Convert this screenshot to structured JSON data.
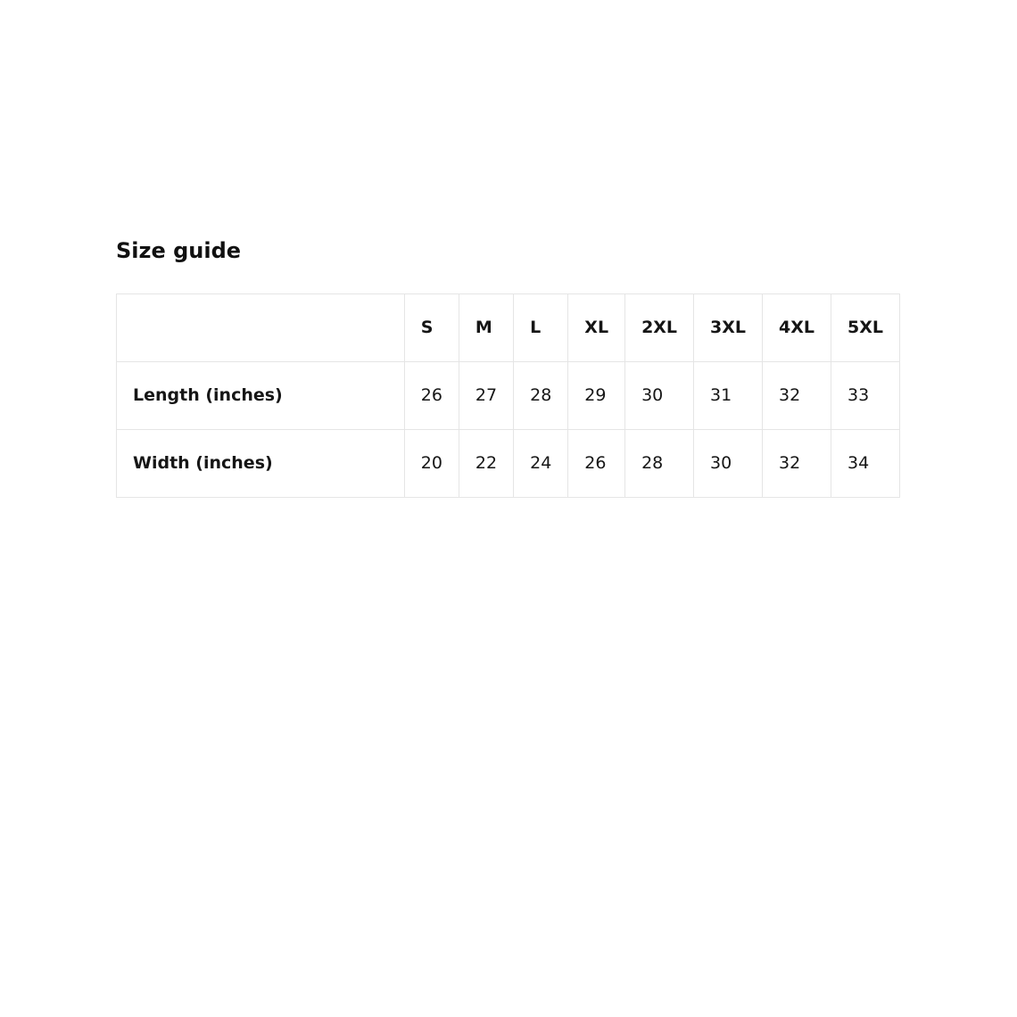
{
  "page": {
    "title": "Size guide"
  },
  "size_table": {
    "columns": [
      "S",
      "M",
      "L",
      "XL",
      "2XL",
      "3XL",
      "4XL",
      "5XL"
    ],
    "rows": [
      {
        "label": "Length (inches)",
        "values": [
          "26",
          "27",
          "28",
          "29",
          "30",
          "31",
          "32",
          "33"
        ]
      },
      {
        "label": "Width (inches)",
        "values": [
          "20",
          "22",
          "24",
          "26",
          "28",
          "30",
          "32",
          "34"
        ]
      }
    ],
    "colors": {
      "background": "#ffffff",
      "border": "#e5e5e5",
      "text": "#161616"
    }
  }
}
